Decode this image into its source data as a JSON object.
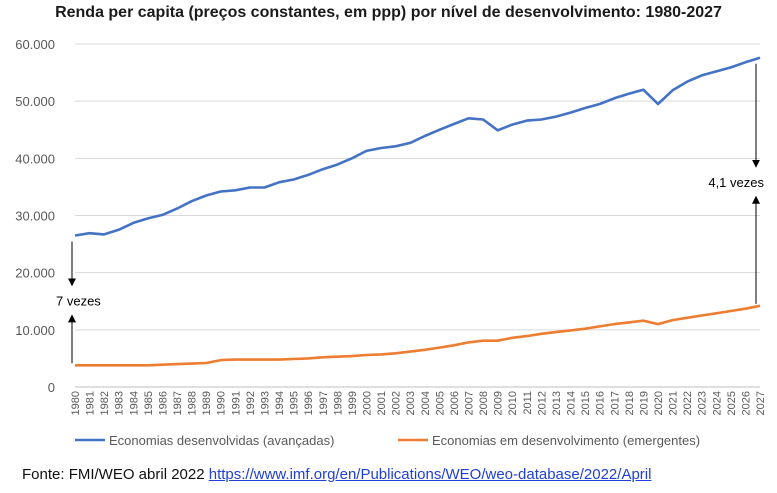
{
  "chart_data": {
    "type": "line",
    "title": "Renda per capita (preços constantes, em ppp) por nível de desenvolvimento: 1980-2027",
    "xlabel": "",
    "ylabel": "",
    "ylim": [
      0,
      60000
    ],
    "y_ticks": [
      "0",
      "10.000",
      "20.000",
      "30.000",
      "40.000",
      "50.000",
      "60.000"
    ],
    "y_tick_values": [
      0,
      10000,
      20000,
      30000,
      40000,
      50000,
      60000
    ],
    "grid": true,
    "legend_position": "bottom",
    "x": [
      "1980",
      "1981",
      "1982",
      "1983",
      "1984",
      "1985",
      "1986",
      "1987",
      "1988",
      "1989",
      "1990",
      "1991",
      "1992",
      "1993",
      "1994",
      "1995",
      "1996",
      "1997",
      "1998",
      "1999",
      "2000",
      "2001",
      "2002",
      "2003",
      "2004",
      "2005",
      "2006",
      "2007",
      "2008",
      "2009",
      "2010",
      "2011",
      "2012",
      "2013",
      "2014",
      "2015",
      "2016",
      "2017",
      "2018",
      "2019",
      "2020",
      "2021",
      "2022",
      "2023",
      "2024",
      "2025",
      "2026",
      "2027"
    ],
    "series": [
      {
        "name": "Economias desenvolvidas (avançadas)",
        "color": "#4472c4",
        "values": [
          26500,
          26900,
          26700,
          27500,
          28700,
          29500,
          30100,
          31200,
          32500,
          33500,
          34200,
          34400,
          34900,
          34900,
          35800,
          36300,
          37100,
          38100,
          38900,
          40000,
          41300,
          41800,
          42100,
          42700,
          43900,
          45000,
          46000,
          47000,
          46800,
          44900,
          45900,
          46600,
          46800,
          47300,
          48000,
          48800,
          49500,
          50500,
          51300,
          52000,
          49500,
          51900,
          53400,
          54500,
          55200,
          55900,
          56800,
          57600
        ]
      },
      {
        "name": "Economias em desenvolvimento (emergentes)",
        "color": "#ed7d31",
        "values": [
          3800,
          3800,
          3800,
          3800,
          3800,
          3800,
          3900,
          4000,
          4100,
          4200,
          4700,
          4800,
          4800,
          4800,
          4800,
          4900,
          5000,
          5200,
          5300,
          5400,
          5600,
          5700,
          5900,
          6200,
          6500,
          6900,
          7300,
          7800,
          8100,
          8100,
          8600,
          8900,
          9300,
          9600,
          9900,
          10200,
          10600,
          11000,
          11300,
          11600,
          11000,
          11700,
          12100,
          12500,
          12900,
          13300,
          13700,
          14200
        ]
      }
    ],
    "annotations": [
      {
        "text": "7 vezes",
        "year": "1980"
      },
      {
        "text": "4,1 vezes",
        "year": "2027"
      }
    ]
  },
  "source": {
    "prefix": "Fonte: FMI/WEO abril 2022 ",
    "link": "https://www.imf.org/en/Publications/WEO/weo-database/2022/April"
  }
}
